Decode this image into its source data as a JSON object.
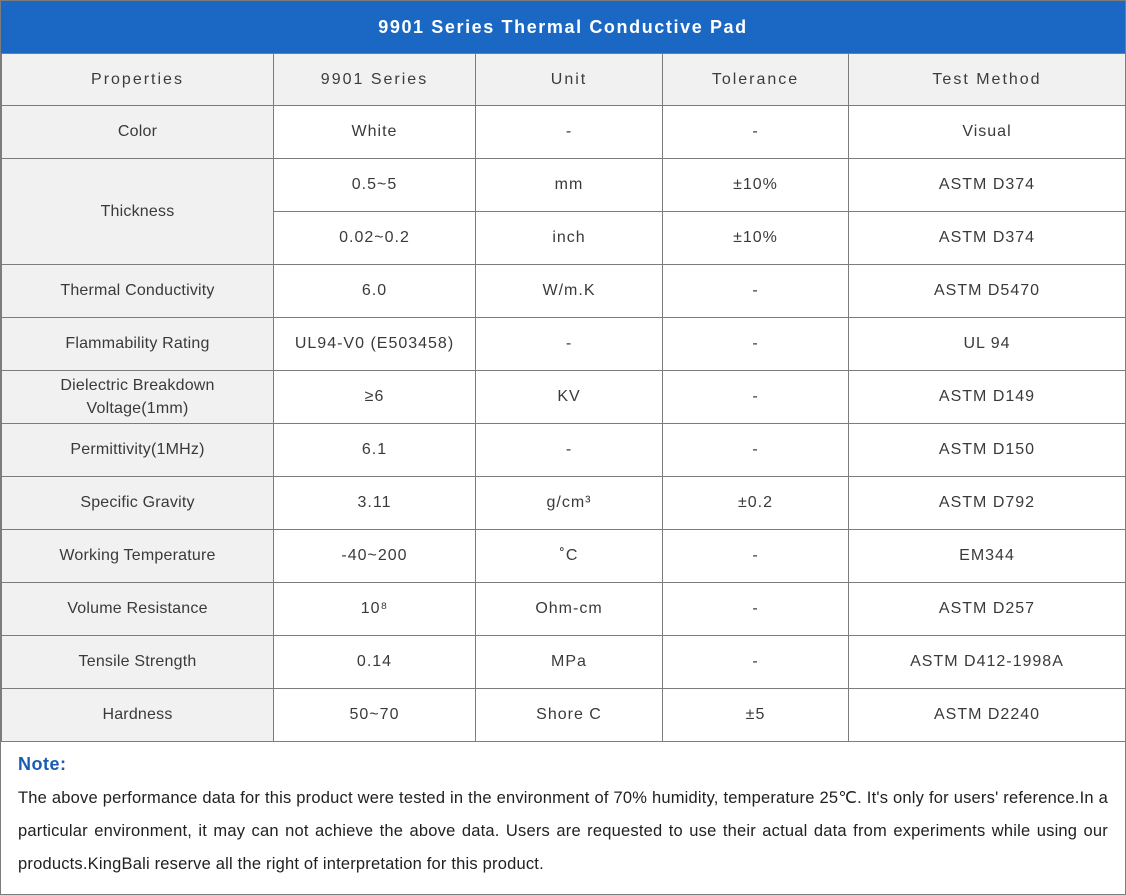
{
  "title": "9901 Series Thermal Conductive Pad",
  "table": {
    "headers": [
      "Properties",
      "9901 Series",
      "Unit",
      "Tolerance",
      "Test Method"
    ],
    "rows": [
      {
        "property": "Color",
        "value": "White",
        "unit": "-",
        "tolerance": "-",
        "method": "Visual"
      },
      {
        "property": "Thickness",
        "subrows": [
          {
            "value": "0.5~5",
            "unit": "mm",
            "tolerance": "±10%",
            "method": "ASTM D374"
          },
          {
            "value": "0.02~0.2",
            "unit": "inch",
            "tolerance": "±10%",
            "method": "ASTM D374"
          }
        ]
      },
      {
        "property": "Thermal Conductivity",
        "value": "6.0",
        "unit": "W/m.K",
        "tolerance": "-",
        "method": "ASTM D5470"
      },
      {
        "property": "Flammability Rating",
        "value": "UL94-V0 (E503458)",
        "unit": "-",
        "tolerance": "-",
        "method": "UL 94"
      },
      {
        "property": "Dielectric Breakdown Voltage(1mm)",
        "value": "≥6",
        "unit": "KV",
        "tolerance": "-",
        "method": "ASTM D149"
      },
      {
        "property": "Permittivity(1MHz)",
        "value": "6.1",
        "unit": "-",
        "tolerance": "-",
        "method": "ASTM D150"
      },
      {
        "property": "Specific Gravity",
        "value": "3.11",
        "unit": "g/cm³",
        "tolerance": "±0.2",
        "method": "ASTM D792"
      },
      {
        "property": "Working Temperature",
        "value": "-40~200",
        "unit": "˚C",
        "tolerance": "-",
        "method": "EM344"
      },
      {
        "property": "Volume Resistance",
        "value": "10⁸",
        "unit": "Ohm-cm",
        "tolerance": "-",
        "method": "ASTM D257"
      },
      {
        "property": "Tensile Strength",
        "value": "0.14",
        "unit": "MPa",
        "tolerance": "-",
        "method": "ASTM D412-1998A"
      },
      {
        "property": "Hardness",
        "value": "50~70",
        "unit": "Shore C",
        "tolerance": "±5",
        "method": "ASTM D2240"
      }
    ]
  },
  "note": {
    "label": "Note:",
    "text": "The above performance data for this product were tested in the environment of 70% humidity, temperature 25℃. It's only for users' reference.In a particular environment, it may can not achieve the above data. Users are requested to use their actual data from experiments while using our products.KingBali reserve all the right of interpretation for this product."
  },
  "colors": {
    "title_bar": "#1b68c4",
    "header_bg": "#f1f1f1",
    "border": "#7c7c7c",
    "note_label": "#1a5cb4"
  }
}
